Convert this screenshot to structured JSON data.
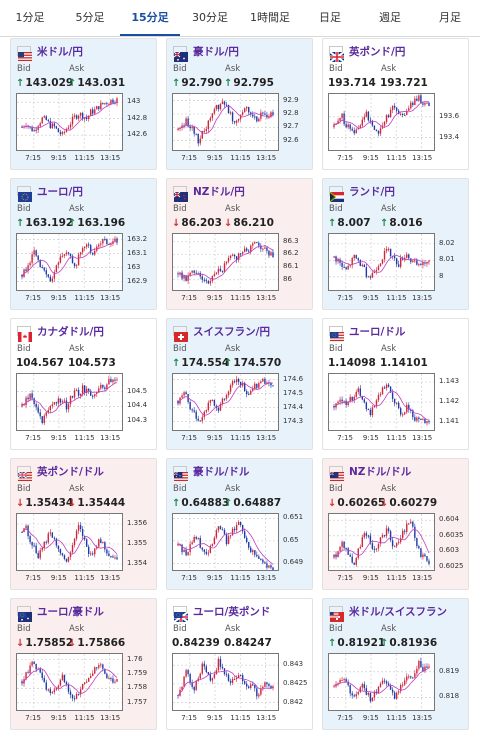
{
  "tabs": [
    "1分足",
    "5分足",
    "15分足",
    "30分足",
    "1時間足",
    "日足",
    "週足",
    "月足"
  ],
  "active_tab": "15分足",
  "labels": {
    "bid": "Bid",
    "ask": "Ask"
  },
  "colors": {
    "pair": "#5a2a9e",
    "up_bg": "#e8f2fb",
    "down_bg": "#fbeeee",
    "bull": "#d0263a",
    "bear": "#1f3aa8",
    "ma": "#c040c0"
  },
  "cards": [
    {
      "pair": "米ドル/円",
      "flag": "us",
      "trend": "up",
      "bid": "143.029",
      "ask": "143.031",
      "bid_dir": "up",
      "ask_dir": "up",
      "chart_data": {
        "type": "candlestick",
        "ylim": [
          142.42,
          143.1
        ],
        "yticks": [
          "143",
          "142.8",
          "142.6"
        ],
        "ytick_values": [
          143,
          142.8,
          142.6
        ],
        "xticks": [
          "7:15",
          "9:15",
          "11:15",
          "13:15"
        ],
        "shape": [
          142.7,
          142.75,
          142.68,
          142.66,
          142.74,
          142.8,
          142.78,
          142.72,
          142.7,
          142.64,
          142.6,
          142.68,
          142.75,
          142.82,
          142.86,
          142.84,
          142.8,
          142.88,
          142.9,
          142.95,
          142.98,
          143.0,
          143.02,
          143.03
        ]
      }
    },
    {
      "pair": "豪ドル/円",
      "flag": "au",
      "trend": "up",
      "bid": "92.790",
      "ask": "92.795",
      "bid_dir": "up",
      "ask_dir": "up",
      "chart_data": {
        "type": "candlestick",
        "ylim": [
          92.53,
          92.95
        ],
        "yticks": [
          "92.9",
          "92.8",
          "92.7",
          "92.6"
        ],
        "ytick_values": [
          92.9,
          92.8,
          92.7,
          92.6
        ],
        "xticks": [
          "7:15",
          "9:15",
          "11:15",
          "13:15"
        ],
        "shape": [
          92.68,
          92.72,
          92.75,
          92.7,
          92.66,
          92.6,
          92.65,
          92.7,
          92.78,
          92.84,
          92.86,
          92.9,
          92.85,
          92.8,
          92.74,
          92.78,
          92.82,
          92.86,
          92.8,
          92.76,
          92.78,
          92.8,
          92.78,
          92.79
        ]
      }
    },
    {
      "pair": "英ポンド/円",
      "flag": "gb",
      "trend": "flat",
      "bid": "193.714",
      "ask": "193.721",
      "bid_dir": "none",
      "ask_dir": "none",
      "chart_data": {
        "type": "candlestick",
        "ylim": [
          193.28,
          193.82
        ],
        "yticks": [
          "193.6",
          "193.4"
        ],
        "ytick_values": [
          193.6,
          193.4
        ],
        "xticks": [
          "7:15",
          "9:15",
          "11:15",
          "13:15"
        ],
        "shape": [
          193.5,
          193.55,
          193.6,
          193.52,
          193.48,
          193.44,
          193.5,
          193.58,
          193.62,
          193.56,
          193.5,
          193.45,
          193.52,
          193.6,
          193.66,
          193.7,
          193.64,
          193.6,
          193.68,
          193.72,
          193.75,
          193.78,
          193.74,
          193.71
        ]
      }
    },
    {
      "pair": "ユーロ/円",
      "flag": "eu",
      "trend": "up",
      "bid": "163.192",
      "ask": "163.196",
      "bid_dir": "up",
      "ask_dir": "up",
      "chart_data": {
        "type": "candlestick",
        "ylim": [
          162.84,
          163.24
        ],
        "yticks": [
          "163.2",
          "163.1",
          "163",
          "162.9"
        ],
        "ytick_values": [
          163.2,
          163.1,
          163,
          162.9
        ],
        "xticks": [
          "7:15",
          "9:15",
          "11:15",
          "13:15"
        ],
        "shape": [
          162.95,
          163.0,
          163.05,
          163.1,
          163.04,
          162.98,
          162.94,
          162.9,
          162.96,
          163.04,
          163.1,
          163.12,
          163.06,
          163.0,
          163.08,
          163.14,
          163.18,
          163.12,
          163.1,
          163.16,
          163.2,
          163.18,
          163.15,
          163.19
        ]
      }
    },
    {
      "pair": "NZドル/円",
      "flag": "nz",
      "trend": "down",
      "bid": "86.203",
      "ask": "86.210",
      "bid_dir": "down",
      "ask_dir": "down",
      "chart_data": {
        "type": "candlestick",
        "ylim": [
          85.92,
          86.36
        ],
        "yticks": [
          "86.3",
          "86.2",
          "86.1",
          "86"
        ],
        "ytick_values": [
          86.3,
          86.2,
          86.1,
          86
        ],
        "xticks": [
          "7:15",
          "9:15",
          "11:15",
          "13:15"
        ],
        "shape": [
          86.05,
          86.02,
          86.0,
          86.04,
          86.08,
          86.06,
          86.02,
          85.98,
          86.0,
          86.05,
          86.1,
          86.08,
          86.14,
          86.18,
          86.16,
          86.2,
          86.24,
          86.22,
          86.26,
          86.3,
          86.28,
          86.24,
          86.22,
          86.2
        ]
      }
    },
    {
      "pair": "ランド/円",
      "flag": "za",
      "trend": "up",
      "bid": "8.007",
      "ask": "8.016",
      "bid_dir": "up",
      "ask_dir": "up",
      "chart_data": {
        "type": "candlestick",
        "ylim": [
          7.992,
          8.026
        ],
        "yticks": [
          "8.02",
          "8.01",
          "8"
        ],
        "ytick_values": [
          8.02,
          8.01,
          8
        ],
        "xticks": [
          "7:15",
          "9:15",
          "11:15",
          "13:15"
        ],
        "shape": [
          8.012,
          8.01,
          8.006,
          8.004,
          8.008,
          8.012,
          8.01,
          8.006,
          8.002,
          8.0,
          8.004,
          8.008,
          8.012,
          8.016,
          8.014,
          8.01,
          8.008,
          8.012,
          8.014,
          8.01,
          8.008,
          8.006,
          8.009,
          8.008
        ]
      }
    },
    {
      "pair": "カナダドル/円",
      "flag": "ca",
      "trend": "flat",
      "bid": "104.567",
      "ask": "104.573",
      "bid_dir": "none",
      "ask_dir": "none",
      "chart_data": {
        "type": "candlestick",
        "ylim": [
          104.24,
          104.62
        ],
        "yticks": [
          "104.5",
          "104.4",
          "104.3"
        ],
        "ytick_values": [
          104.5,
          104.4,
          104.3
        ],
        "xticks": [
          "7:15",
          "9:15",
          "11:15",
          "13:15"
        ],
        "shape": [
          104.4,
          104.44,
          104.48,
          104.42,
          104.36,
          104.3,
          104.34,
          104.38,
          104.42,
          104.46,
          104.44,
          104.4,
          104.46,
          104.5,
          104.48,
          104.52,
          104.5,
          104.47,
          104.5,
          104.54,
          104.52,
          104.56,
          104.58,
          104.57
        ]
      }
    },
    {
      "pair": "スイスフラン/円",
      "flag": "ch",
      "trend": "up",
      "bid": "174.554",
      "ask": "174.570",
      "bid_dir": "up",
      "ask_dir": "up",
      "chart_data": {
        "type": "candlestick",
        "ylim": [
          174.24,
          174.64
        ],
        "yticks": [
          "174.6",
          "174.5",
          "174.4",
          "174.3"
        ],
        "ytick_values": [
          174.6,
          174.5,
          174.4,
          174.3
        ],
        "xticks": [
          "7:15",
          "9:15",
          "11:15",
          "13:15"
        ],
        "shape": [
          174.45,
          174.5,
          174.48,
          174.4,
          174.36,
          174.3,
          174.34,
          174.4,
          174.46,
          174.42,
          174.38,
          174.44,
          174.5,
          174.55,
          174.58,
          174.6,
          174.56,
          174.52,
          174.5,
          174.55,
          174.58,
          174.6,
          174.56,
          174.55
        ]
      }
    },
    {
      "pair": "ユーロ/ドル",
      "flag": "euus",
      "trend": "flat",
      "bid": "1.14098",
      "ask": "1.14101",
      "bid_dir": "none",
      "ask_dir": "none",
      "chart_data": {
        "type": "candlestick",
        "ylim": [
          1.1406,
          1.1434
        ],
        "yticks": [
          "1.143",
          "1.142",
          "1.141"
        ],
        "ytick_values": [
          1.143,
          1.142,
          1.141
        ],
        "xticks": [
          "7:15",
          "9:15",
          "11:15",
          "13:15"
        ],
        "shape": [
          1.1418,
          1.142,
          1.1422,
          1.142,
          1.1421,
          1.1424,
          1.1426,
          1.1422,
          1.1418,
          1.1414,
          1.1418,
          1.1422,
          1.1426,
          1.1428,
          1.1424,
          1.142,
          1.1416,
          1.1414,
          1.1418,
          1.1415,
          1.1412,
          1.141,
          1.1411,
          1.141
        ]
      }
    },
    {
      "pair": "英ポンド/ドル",
      "flag": "gbus",
      "trend": "down",
      "bid": "1.35434",
      "ask": "1.35444",
      "bid_dir": "down",
      "ask_dir": "down",
      "chart_data": {
        "type": "candlestick",
        "ylim": [
          1.3537,
          1.3565
        ],
        "yticks": [
          "1.356",
          "1.355",
          "1.354"
        ],
        "ytick_values": [
          1.356,
          1.355,
          1.354
        ],
        "xticks": [
          "7:15",
          "9:15",
          "11:15",
          "13:15"
        ],
        "shape": [
          1.3556,
          1.3558,
          1.3552,
          1.3548,
          1.3544,
          1.3548,
          1.3552,
          1.3556,
          1.3552,
          1.3548,
          1.3544,
          1.354,
          1.3546,
          1.3552,
          1.3558,
          1.3554,
          1.3548,
          1.3544,
          1.3548,
          1.3552,
          1.355,
          1.3546,
          1.3544,
          1.3543
        ]
      }
    },
    {
      "pair": "豪ドル/ドル",
      "flag": "auus",
      "trend": "up",
      "bid": "0.64883",
      "ask": "0.64887",
      "bid_dir": "up",
      "ask_dir": "up",
      "chart_data": {
        "type": "candlestick",
        "ylim": [
          0.6487,
          0.6512
        ],
        "yticks": [
          "0.651",
          "0.65",
          "0.649"
        ],
        "ytick_values": [
          0.651,
          0.65,
          0.649
        ],
        "xticks": [
          "7:15",
          "9:15",
          "11:15",
          "13:15"
        ],
        "shape": [
          0.6498,
          0.6496,
          0.6494,
          0.6498,
          0.6502,
          0.65,
          0.6496,
          0.6494,
          0.6498,
          0.6502,
          0.6506,
          0.6504,
          0.65,
          0.6502,
          0.6506,
          0.6508,
          0.6504,
          0.65,
          0.6496,
          0.6494,
          0.6492,
          0.649,
          0.6489,
          0.6488
        ]
      }
    },
    {
      "pair": "NZドル/ドル",
      "flag": "nzus",
      "trend": "down",
      "bid": "0.60265",
      "ask": "0.60279",
      "bid_dir": "down",
      "ask_dir": "down",
      "chart_data": {
        "type": "candlestick",
        "ylim": [
          0.6024,
          0.6042
        ],
        "yticks": [
          "0.604",
          "0.6035",
          "0.603",
          "0.6025"
        ],
        "ytick_values": [
          0.604,
          0.6035,
          0.603,
          0.6025
        ],
        "xticks": [
          "7:15",
          "9:15",
          "11:15",
          "13:15"
        ],
        "shape": [
          0.6028,
          0.603,
          0.6033,
          0.6031,
          0.6028,
          0.6026,
          0.603,
          0.6034,
          0.6036,
          0.6033,
          0.603,
          0.6032,
          0.6035,
          0.6037,
          0.6034,
          0.6031,
          0.6033,
          0.6036,
          0.6038,
          0.604,
          0.6035,
          0.603,
          0.6028,
          0.6027
        ]
      }
    },
    {
      "pair": "ユーロ/豪ドル",
      "flag": "euau",
      "trend": "down",
      "bid": "1.75852",
      "ask": "1.75866",
      "bid_dir": "down",
      "ask_dir": "down",
      "chart_data": {
        "type": "candlestick",
        "ylim": [
          1.7565,
          1.7604
        ],
        "yticks": [
          "1.76",
          "1.759",
          "1.758",
          "1.757"
        ],
        "ytick_values": [
          1.76,
          1.759,
          1.758,
          1.757
        ],
        "xticks": [
          "7:15",
          "9:15",
          "11:15",
          "13:15"
        ],
        "shape": [
          1.7585,
          1.759,
          1.7595,
          1.7598,
          1.7592,
          1.7586,
          1.758,
          1.7575,
          1.7578,
          1.7583,
          1.7588,
          1.7582,
          1.7577,
          1.7572,
          1.7576,
          1.7581,
          1.7585,
          1.759,
          1.7594,
          1.7598,
          1.7592,
          1.7588,
          1.7586,
          1.7585
        ]
      }
    },
    {
      "pair": "ユーロ/英ポンド",
      "flag": "eugb",
      "trend": "flat",
      "bid": "0.84239",
      "ask": "0.84247",
      "bid_dir": "none",
      "ask_dir": "none",
      "chart_data": {
        "type": "candlestick",
        "ylim": [
          0.8418,
          0.8433
        ],
        "yticks": [
          "0.843",
          "0.8425",
          "0.842"
        ],
        "ytick_values": [
          0.843,
          0.8425,
          0.842
        ],
        "xticks": [
          "7:15",
          "9:15",
          "11:15",
          "13:15"
        ],
        "shape": [
          0.8422,
          0.8425,
          0.8428,
          0.8426,
          0.8424,
          0.8427,
          0.843,
          0.8429,
          0.8426,
          0.8428,
          0.8431,
          0.8429,
          0.8427,
          0.8425,
          0.8426,
          0.8428,
          0.8426,
          0.8424,
          0.8425,
          0.8423,
          0.8422,
          0.8424,
          0.8425,
          0.8424
        ]
      }
    },
    {
      "pair": "米ドル/スイスフラン",
      "flag": "usch",
      "trend": "up",
      "bid": "0.81921",
      "ask": "0.81936",
      "bid_dir": "up",
      "ask_dir": "up",
      "chart_data": {
        "type": "candlestick",
        "ylim": [
          0.8175,
          0.8197
        ],
        "yticks": [
          "0.819",
          "0.818"
        ],
        "ytick_values": [
          0.819,
          0.818
        ],
        "xticks": [
          "7:15",
          "9:15",
          "11:15",
          "13:15"
        ],
        "shape": [
          0.8184,
          0.8186,
          0.8188,
          0.8185,
          0.8182,
          0.818,
          0.8183,
          0.8186,
          0.8182,
          0.8179,
          0.8181,
          0.8184,
          0.8187,
          0.8185,
          0.8182,
          0.818,
          0.8183,
          0.8186,
          0.8189,
          0.8187,
          0.819,
          0.8193,
          0.8191,
          0.8192
        ]
      }
    }
  ]
}
